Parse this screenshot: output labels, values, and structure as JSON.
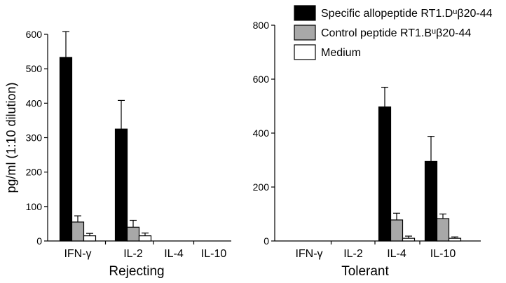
{
  "chart_data": [
    {
      "type": "bar",
      "xlabel": "Rejecting",
      "ylabel": "pg/ml (1:10 dilution)",
      "ylim": [
        0,
        600
      ],
      "yticks": [
        "0",
        "100",
        "200",
        "300",
        "400",
        "500",
        "600"
      ],
      "categories": [
        "IFN-γ",
        "IL-2",
        "IL-4",
        "IL-10"
      ],
      "series": [
        {
          "name": "Specific allopeptide RT1.Dᵘβ20-44",
          "color": "#000000",
          "values": [
            533,
            325,
            0,
            0
          ],
          "errors": [
            75,
            83,
            0,
            0
          ]
        },
        {
          "name": "Control peptide RT1.Bᵘβ20-44",
          "color": "#a8a8a8",
          "values": [
            55,
            40,
            0,
            0
          ],
          "errors": [
            18,
            20,
            0,
            0
          ]
        },
        {
          "name": "Medium",
          "color": "#ffffff",
          "values": [
            15,
            15,
            0,
            0
          ],
          "errors": [
            7,
            8,
            0,
            0
          ]
        }
      ]
    },
    {
      "type": "bar",
      "xlabel": "Tolerant",
      "ylabel": "",
      "ylim": [
        0,
        800
      ],
      "yticks": [
        "0",
        "200",
        "400",
        "600",
        "800"
      ],
      "categories": [
        "IFN-γ",
        "IL-2",
        "IL-4",
        "IL-10"
      ],
      "series": [
        {
          "name": "Specific allopeptide RT1.Dᵘβ20-44",
          "color": "#000000",
          "values": [
            0,
            0,
            497,
            295
          ],
          "errors": [
            0,
            0,
            73,
            93
          ]
        },
        {
          "name": "Control peptide RT1.Bᵘβ20-44",
          "color": "#a8a8a8",
          "values": [
            0,
            0,
            78,
            83
          ],
          "errors": [
            0,
            0,
            25,
            17
          ]
        },
        {
          "name": "Medium",
          "color": "#ffffff",
          "values": [
            0,
            0,
            10,
            10
          ],
          "errors": [
            0,
            0,
            8,
            5
          ]
        }
      ]
    }
  ],
  "legend": {
    "placement": "top-right",
    "items": [
      {
        "label": "Specific allopeptide RT1.Dᵘβ20-44",
        "color": "#000000"
      },
      {
        "label": "Control peptide RT1.Bᵘβ20-44",
        "color": "#a8a8a8"
      },
      {
        "label": "Medium",
        "color": "#ffffff"
      }
    ]
  }
}
